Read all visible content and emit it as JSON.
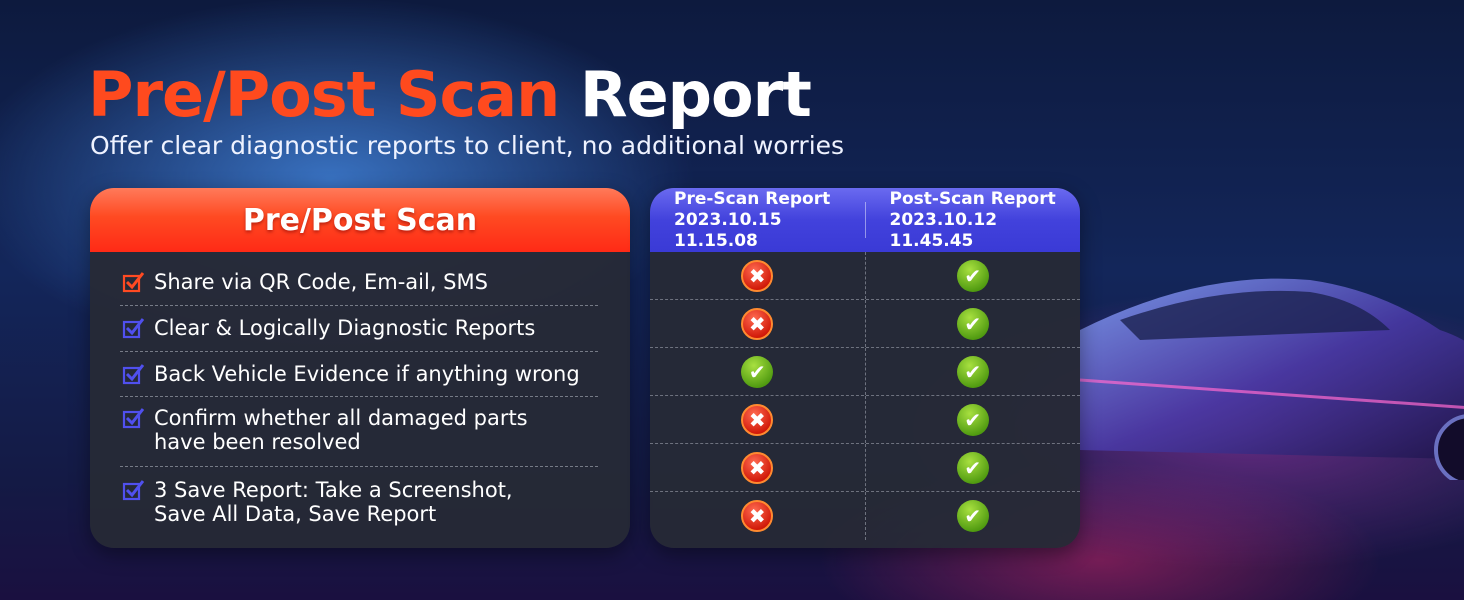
{
  "title": {
    "highlight": "Pre/Post Scan",
    "rest": "Report"
  },
  "subtitle": "Offer clear diagnostic reports to client, no additional worries",
  "features": {
    "header": "Pre/Post Scan",
    "items": [
      {
        "lines": [
          "Share via QR Code, Em-ail, SMS"
        ],
        "icon_color": "#ff4a22"
      },
      {
        "lines": [
          "Clear & Logically Diagnostic Reports"
        ],
        "icon_color": "#5050ee"
      },
      {
        "lines": [
          "Back Vehicle Evidence if anything wrong"
        ],
        "icon_color": "#5050ee"
      },
      {
        "lines": [
          "Confirm whether all damaged parts",
          "have been resolved"
        ],
        "icon_color": "#5050ee"
      },
      {
        "lines": [
          "3 Save Report: Take a Screenshot,",
          "Save All Data, Save Report"
        ],
        "icon_color": "#5050ee"
      }
    ]
  },
  "comparison": {
    "columns": [
      {
        "label": "Pre-Scan Report",
        "timestamp": "2023.10.15 11.15.08"
      },
      {
        "label": "Post-Scan Report",
        "timestamp": "2023.10.12 11.45.45"
      }
    ],
    "rows": [
      [
        "fail",
        "pass"
      ],
      [
        "fail",
        "pass"
      ],
      [
        "pass",
        "pass"
      ],
      [
        "fail",
        "pass"
      ],
      [
        "fail",
        "pass"
      ],
      [
        "fail",
        "pass"
      ]
    ]
  },
  "colors": {
    "accent": "#ff4a1e",
    "header_blue": "#4242dc",
    "pass": "#5fae16",
    "fail": "#e0200c"
  }
}
